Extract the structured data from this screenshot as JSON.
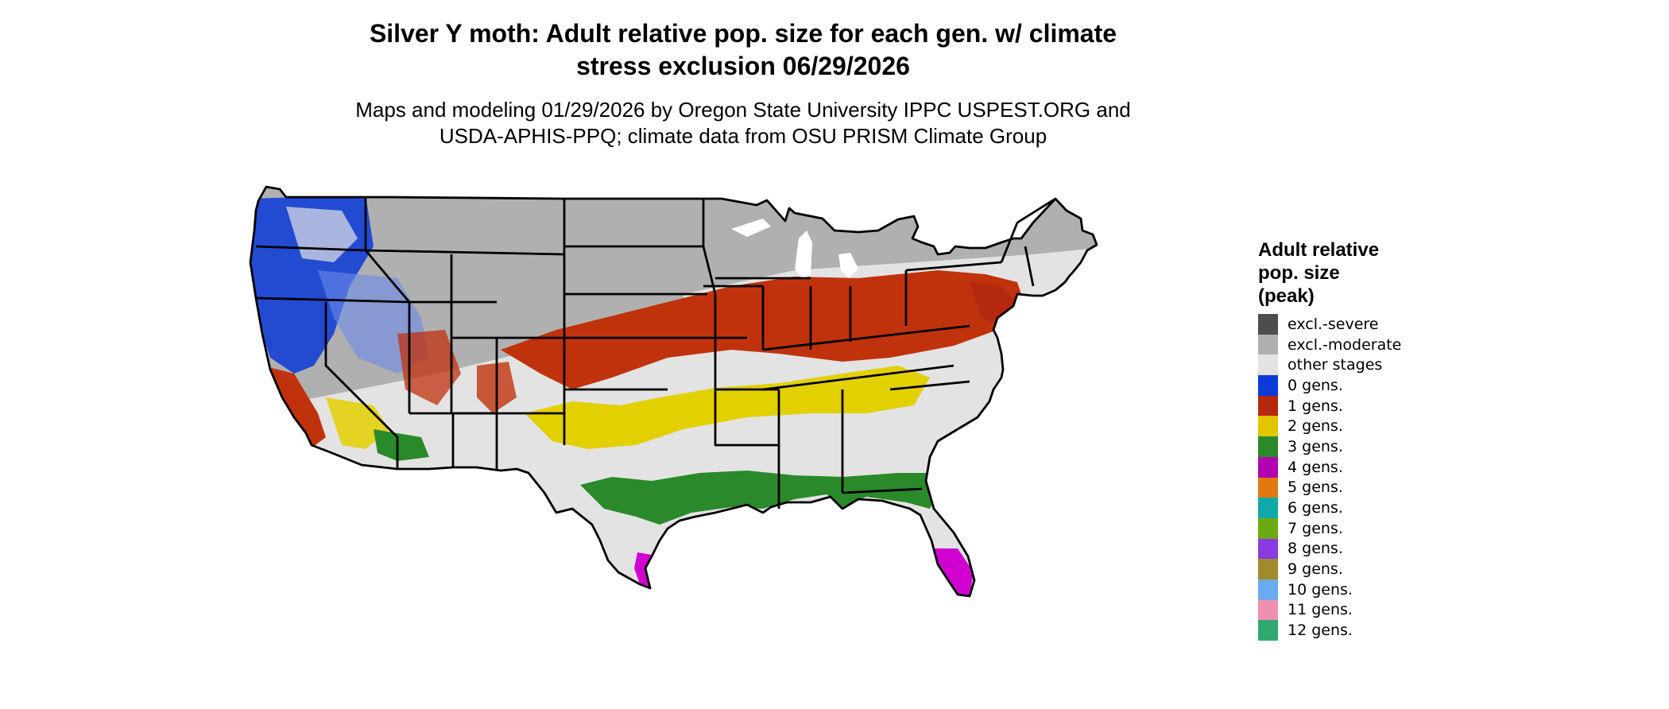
{
  "title": {
    "line1": "Silver Y moth: Adult relative pop. size for each gen. w/ climate",
    "line2": "stress exclusion 06/29/2026"
  },
  "subtitle": {
    "line1": "Maps and modeling 01/29/2026 by Oregon State University IPPC USPEST.ORG and",
    "line2": "USDA-APHIS-PPQ; climate data from OSU PRISM Climate Group"
  },
  "legend": {
    "title_lines": [
      "Adult relative",
      "pop. size",
      "(peak)"
    ],
    "items": [
      {
        "label": "excl.-severe",
        "color": "#4d4d4d"
      },
      {
        "label": "excl.-moderate",
        "color": "#b0b0b0"
      },
      {
        "label": "other stages",
        "color": "#e3e3e3"
      },
      {
        "label": "0 gens.",
        "color": "#0b3ad8"
      },
      {
        "label": "1 gens.",
        "color": "#b3280e"
      },
      {
        "label": "2 gens.",
        "color": "#e3c400"
      },
      {
        "label": "3 gens.",
        "color": "#2a8a2a"
      },
      {
        "label": "4 gens.",
        "color": "#b000b0"
      },
      {
        "label": "5 gens.",
        "color": "#e07a10"
      },
      {
        "label": "6 gens.",
        "color": "#10a8a8"
      },
      {
        "label": "7 gens.",
        "color": "#6aaa10"
      },
      {
        "label": "8 gens.",
        "color": "#8a3ae0"
      },
      {
        "label": "9 gens.",
        "color": "#a08a2a"
      },
      {
        "label": "10 gens.",
        "color": "#6aaaf0"
      },
      {
        "label": "11 gens.",
        "color": "#f090b0"
      },
      {
        "label": "12 gens.",
        "color": "#30a870"
      }
    ]
  }
}
